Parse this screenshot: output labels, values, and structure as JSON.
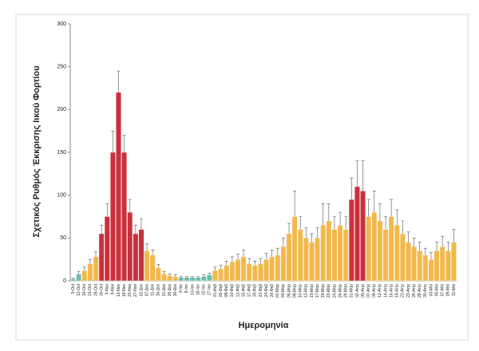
{
  "chart_data": {
    "type": "bar",
    "ylabel": "Σχετικός Ρυθμός Έκκρισης Ιικού Φορτίου",
    "xlabel": "Ημερομηνία",
    "categories": [
      "5-Oct",
      "12-Oct",
      "16-Oct",
      "21-Oct",
      "26-Oct",
      "30-Oct",
      "4-Nov",
      "9-Nov",
      "13-Nov",
      "18-Nov",
      "23-Nov",
      "27-Nov",
      "02-Δεκ",
      "07-Δεκ",
      "11-Δεκ",
      "16-Δεκ",
      "21-Δεκ",
      "25-Δεκ",
      "30-Δεκ",
      "4-Ιαν",
      "8-Ιαν",
      "13-Ιαν",
      "18-Ιαν",
      "22-Ιαν",
      "27-Ιαν",
      "01-Φεβ",
      "05-Φεβ",
      "08-Φεβ",
      "10-Φεβ",
      "12-Φεβ",
      "15-Φεβ",
      "17-Φεβ",
      "19-Φεβ",
      "22-Φεβ",
      "24-Φεβ",
      "26-Φεβ",
      "01-Μαρ",
      "03-Μαρ",
      "05-Μαρ",
      "08-Μαρ",
      "10-Μαρ",
      "12-Μαρ",
      "15-Μαρ",
      "17-Μαρ",
      "19-Μαρ",
      "22-Μαρ",
      "24-Μαρ",
      "26-Μαρ",
      "29-Μαρ",
      "31-Μαρ",
      "02-Απρ",
      "05-Απρ",
      "07-Απρ",
      "09-Απρ",
      "12-Απρ",
      "14-Απρ",
      "16-Απρ",
      "19-Απρ",
      "21-Απρ",
      "23-Απρ",
      "26-Απρ",
      "28-Απρ",
      "30-Απρ",
      "03-Μαϊ",
      "05-Μαϊ",
      "07-Μαϊ",
      "09-Μαϊ",
      "11-Μαϊ"
    ],
    "values": [
      2,
      8,
      12,
      20,
      28,
      55,
      75,
      150,
      220,
      150,
      80,
      55,
      60,
      35,
      30,
      15,
      8,
      6,
      5,
      4,
      4,
      4,
      4,
      5,
      7,
      12,
      14,
      18,
      22,
      25,
      28,
      20,
      18,
      20,
      25,
      28,
      30,
      40,
      55,
      75,
      60,
      50,
      45,
      50,
      65,
      70,
      60,
      65,
      60,
      95,
      110,
      105,
      75,
      80,
      70,
      60,
      75,
      65,
      55,
      45,
      40,
      35,
      30,
      25,
      35,
      40,
      35,
      45
    ],
    "errors": [
      1,
      3,
      4,
      5,
      6,
      10,
      15,
      25,
      25,
      20,
      15,
      10,
      12,
      8,
      6,
      4,
      3,
      2,
      2,
      1,
      1,
      1,
      1,
      2,
      2,
      4,
      4,
      5,
      6,
      6,
      8,
      6,
      5,
      6,
      7,
      8,
      8,
      10,
      12,
      30,
      15,
      12,
      10,
      12,
      25,
      20,
      15,
      15,
      15,
      25,
      30,
      35,
      20,
      25,
      20,
      15,
      20,
      18,
      15,
      12,
      10,
      10,
      8,
      8,
      10,
      12,
      10,
      15
    ],
    "colors": [
      "#6cbcae",
      "#6cbcae",
      "#f2b84b",
      "#f2b84b",
      "#f2b84b",
      "#c9303c",
      "#c9303c",
      "#c9303c",
      "#c9303c",
      "#c9303c",
      "#c9303c",
      "#c9303c",
      "#c9303c",
      "#f2b84b",
      "#f2b84b",
      "#f2b84b",
      "#f2b84b",
      "#f2b84b",
      "#f2b84b",
      "#6cbcae",
      "#6cbcae",
      "#6cbcae",
      "#6cbcae",
      "#6cbcae",
      "#6cbcae",
      "#f2b84b",
      "#f2b84b",
      "#f2b84b",
      "#f2b84b",
      "#f2b84b",
      "#f2b84b",
      "#f2b84b",
      "#f2b84b",
      "#f2b84b",
      "#f2b84b",
      "#f2b84b",
      "#f2b84b",
      "#f2b84b",
      "#f2b84b",
      "#f2b84b",
      "#f2b84b",
      "#f2b84b",
      "#f2b84b",
      "#f2b84b",
      "#f2b84b",
      "#f2b84b",
      "#f2b84b",
      "#f2b84b",
      "#f2b84b",
      "#c9303c",
      "#c9303c",
      "#c9303c",
      "#f2b84b",
      "#f2b84b",
      "#f2b84b",
      "#f2b84b",
      "#f2b84b",
      "#f2b84b",
      "#f2b84b",
      "#f2b84b",
      "#f2b84b",
      "#f2b84b",
      "#f2b84b",
      "#f2b84b",
      "#f2b84b",
      "#f2b84b",
      "#f2b84b",
      "#f2b84b"
    ],
    "ylim": [
      0,
      300
    ],
    "yticks": [
      0,
      50,
      100,
      150,
      200,
      250,
      300
    ],
    "grid": false
  }
}
